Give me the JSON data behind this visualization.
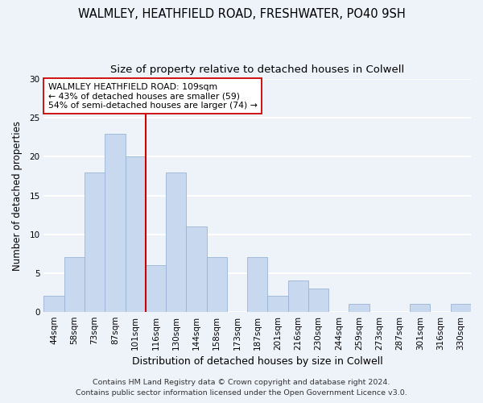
{
  "title1": "WALMLEY, HEATHFIELD ROAD, FRESHWATER, PO40 9SH",
  "title2": "Size of property relative to detached houses in Colwell",
  "xlabel": "Distribution of detached houses by size in Colwell",
  "ylabel": "Number of detached properties",
  "bar_labels": [
    "44sqm",
    "58sqm",
    "73sqm",
    "87sqm",
    "101sqm",
    "116sqm",
    "130sqm",
    "144sqm",
    "158sqm",
    "173sqm",
    "187sqm",
    "201sqm",
    "216sqm",
    "230sqm",
    "244sqm",
    "259sqm",
    "273sqm",
    "287sqm",
    "301sqm",
    "316sqm",
    "330sqm"
  ],
  "bar_values": [
    2,
    7,
    18,
    23,
    20,
    6,
    18,
    11,
    7,
    0,
    7,
    2,
    4,
    3,
    0,
    1,
    0,
    0,
    1,
    0,
    1
  ],
  "bar_color": "#c8d8ee",
  "bar_edge_color": "#9ab4d4",
  "vline_x_index": 4.5,
  "vline_color": "#cc0000",
  "annotation_text": "WALMLEY HEATHFIELD ROAD: 109sqm\n← 43% of detached houses are smaller (59)\n54% of semi-detached houses are larger (74) →",
  "annotation_box_facecolor": "white",
  "annotation_box_edgecolor": "#cc0000",
  "ylim": [
    0,
    30
  ],
  "yticks": [
    0,
    5,
    10,
    15,
    20,
    25,
    30
  ],
  "footer1": "Contains HM Land Registry data © Crown copyright and database right 2024.",
  "footer2": "Contains public sector information licensed under the Open Government Licence v3.0.",
  "background_color": "#eef2f9",
  "grid_color": "white",
  "title1_fontsize": 10.5,
  "title2_fontsize": 9.5,
  "xlabel_fontsize": 9,
  "ylabel_fontsize": 8.5,
  "tick_fontsize": 7.5,
  "annot_fontsize": 7.8,
  "footer_fontsize": 6.8
}
